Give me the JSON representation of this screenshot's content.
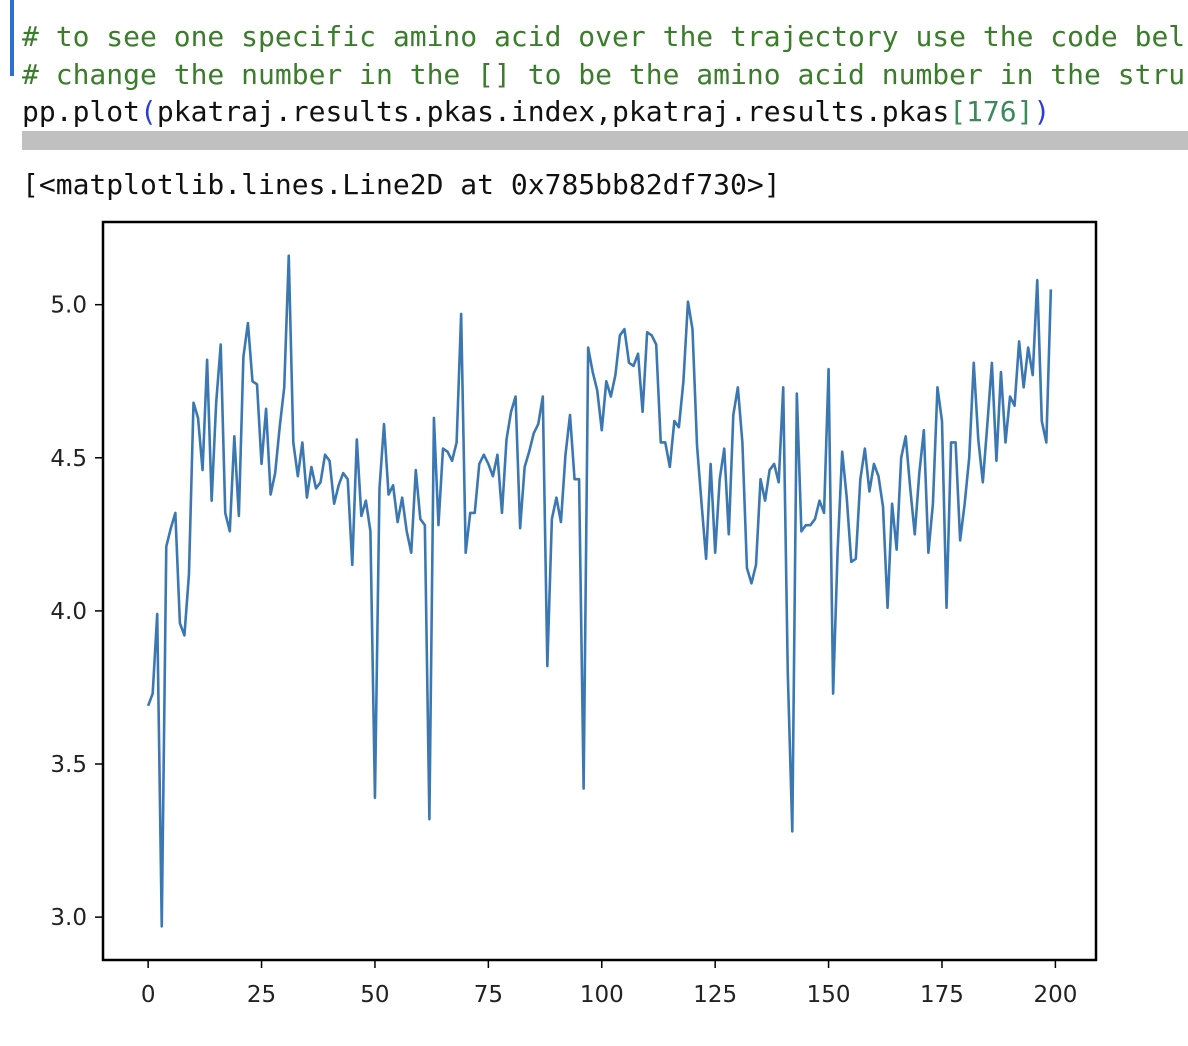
{
  "code": {
    "lines": [
      "# to see one specific amino acid over the trajectory use the code bel",
      "# change the number in the [] to be the amino acid number in the stru"
    ],
    "comment_color": "#3a7d2a",
    "call": [
      {
        "text": "pp.plot",
        "color": "#111111"
      },
      {
        "text": "(",
        "color": "#2a3fd6"
      },
      {
        "text": "pkatraj.results.pkas.index,pkatraj.results.pkas",
        "color": "#111111"
      },
      {
        "text": "[176]",
        "color": "#3a8a5a"
      },
      {
        "text": ")",
        "color": "#2a3fd6"
      }
    ]
  },
  "output": {
    "text": "[<matplotlib.lines.Line2D at 0x785bb82df730>]"
  },
  "chart_data": {
    "type": "line",
    "x": [
      0,
      1,
      2,
      3,
      4,
      5,
      6,
      7,
      8,
      9,
      10,
      11,
      12,
      13,
      14,
      15,
      16,
      17,
      18,
      19,
      20,
      21,
      22,
      23,
      24,
      25,
      26,
      27,
      28,
      29,
      30,
      31,
      32,
      33,
      34,
      35,
      36,
      37,
      38,
      39,
      40,
      41,
      42,
      43,
      44,
      45,
      46,
      47,
      48,
      49,
      50,
      51,
      52,
      53,
      54,
      55,
      56,
      57,
      58,
      59,
      60,
      61,
      62,
      63,
      64,
      65,
      66,
      67,
      68,
      69,
      70,
      71,
      72,
      73,
      74,
      75,
      76,
      77,
      78,
      79,
      80,
      81,
      82,
      83,
      84,
      85,
      86,
      87,
      88,
      89,
      90,
      91,
      92,
      93,
      94,
      95,
      96,
      97,
      98,
      99,
      100,
      101,
      102,
      103,
      104,
      105,
      106,
      107,
      108,
      109,
      110,
      111,
      112,
      113,
      114,
      115,
      116,
      117,
      118,
      119,
      120,
      121,
      122,
      123,
      124,
      125,
      126,
      127,
      128,
      129,
      130,
      131,
      132,
      133,
      134,
      135,
      136,
      137,
      138,
      139,
      140,
      141,
      142,
      143,
      144,
      145,
      146,
      147,
      148,
      149,
      150,
      151,
      152,
      153,
      154,
      155,
      156,
      157,
      158,
      159,
      160,
      161,
      162,
      163,
      164,
      165,
      166,
      167,
      168,
      169,
      170,
      171,
      172,
      173,
      174,
      175,
      176,
      177,
      178,
      179,
      180,
      181,
      182,
      183,
      184,
      185,
      186,
      187,
      188,
      189,
      190,
      191,
      192,
      193,
      194,
      195,
      196,
      197,
      198,
      199
    ],
    "series": [
      {
        "color": "#3b78b2",
        "values": [
          3.69,
          3.73,
          3.99,
          2.97,
          4.21,
          4.27,
          4.32,
          3.96,
          3.92,
          4.12,
          4.68,
          4.63,
          4.46,
          4.82,
          4.36,
          4.68,
          4.87,
          4.32,
          4.26,
          4.57,
          4.31,
          4.83,
          4.94,
          4.75,
          4.74,
          4.48,
          4.66,
          4.38,
          4.45,
          4.6,
          4.73,
          5.16,
          4.55,
          4.44,
          4.55,
          4.37,
          4.47,
          4.4,
          4.42,
          4.51,
          4.49,
          4.35,
          4.41,
          4.45,
          4.43,
          4.15,
          4.56,
          4.31,
          4.36,
          4.26,
          3.39,
          4.4,
          4.61,
          4.38,
          4.41,
          4.29,
          4.37,
          4.26,
          4.19,
          4.46,
          4.3,
          4.28,
          3.32,
          4.63,
          4.28,
          4.53,
          4.52,
          4.49,
          4.55,
          4.97,
          4.19,
          4.32,
          4.32,
          4.48,
          4.51,
          4.48,
          4.44,
          4.51,
          4.32,
          4.56,
          4.65,
          4.7,
          4.27,
          4.47,
          4.52,
          4.58,
          4.61,
          4.7,
          3.82,
          4.3,
          4.37,
          4.29,
          4.51,
          4.64,
          4.43,
          4.43,
          3.42,
          4.86,
          4.78,
          4.72,
          4.59,
          4.75,
          4.7,
          4.77,
          4.9,
          4.92,
          4.81,
          4.8,
          4.84,
          4.65,
          4.91,
          4.9,
          4.87,
          4.55,
          4.55,
          4.47,
          4.62,
          4.6,
          4.75,
          5.01,
          4.92,
          4.54,
          4.35,
          4.17,
          4.48,
          4.19,
          4.43,
          4.53,
          4.25,
          4.64,
          4.73,
          4.55,
          4.14,
          4.09,
          4.15,
          4.43,
          4.36,
          4.46,
          4.48,
          4.42,
          4.73,
          3.8,
          3.28,
          4.71,
          4.26,
          4.28,
          4.28,
          4.3,
          4.36,
          4.32,
          4.79,
          3.73,
          4.2,
          4.52,
          4.37,
          4.16,
          4.17,
          4.43,
          4.53,
          4.39,
          4.48,
          4.44,
          4.34,
          4.01,
          4.35,
          4.2,
          4.5,
          4.57,
          4.4,
          4.25,
          4.45,
          4.59,
          4.19,
          4.35,
          4.73,
          4.62,
          4.01,
          4.55,
          4.55,
          4.23,
          4.35,
          4.5,
          4.81,
          4.56,
          4.42,
          4.61,
          4.81,
          4.49,
          4.78,
          4.55,
          4.7,
          4.67,
          4.88,
          4.73,
          4.86,
          4.77,
          5.08,
          4.62,
          4.55,
          5.05
        ]
      }
    ],
    "xlim": [
      -9.95,
      208.95
    ],
    "ylim": [
      2.86,
      5.27
    ],
    "xticks": [
      0,
      25,
      50,
      75,
      100,
      125,
      150,
      175,
      200
    ],
    "yticks": [
      {
        "value": 3,
        "label": "3.0"
      },
      3.5,
      {
        "value": 4,
        "label": "4.0"
      },
      4.5,
      {
        "value": 5,
        "label": "5.0"
      }
    ]
  }
}
